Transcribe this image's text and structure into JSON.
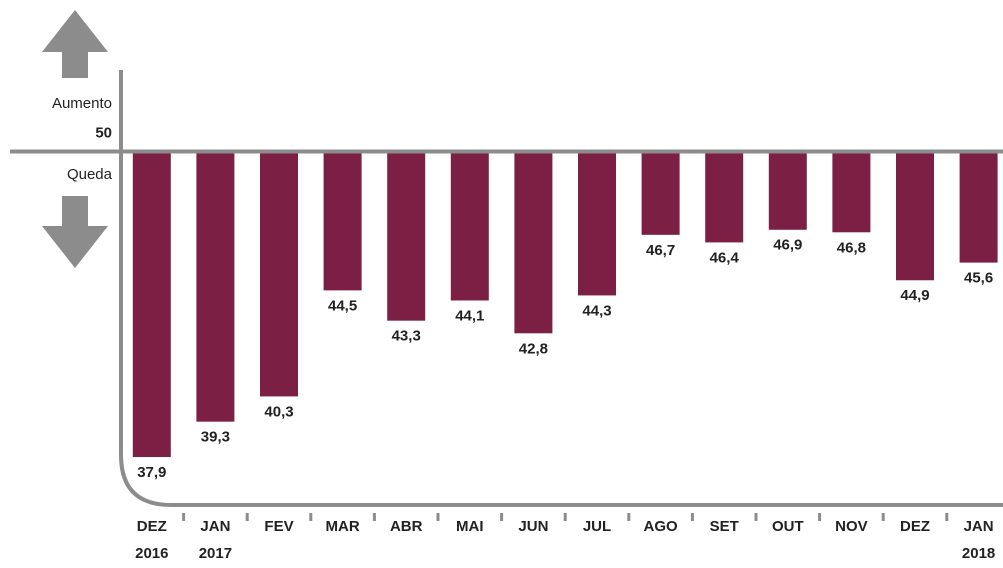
{
  "chart_data": {
    "type": "bar",
    "labels": {
      "up": "Aumento",
      "down": "Queda"
    },
    "categories": [
      [
        "DEZ",
        "2016"
      ],
      [
        "JAN",
        "2017"
      ],
      [
        "FEV"
      ],
      [
        "MAR"
      ],
      [
        "ABR"
      ],
      [
        "MAI"
      ],
      [
        "JUN"
      ],
      [
        "JUL"
      ],
      [
        "AGO"
      ],
      [
        "SET"
      ],
      [
        "OUT"
      ],
      [
        "NOV"
      ],
      [
        "DEZ"
      ],
      [
        "JAN",
        "2018"
      ]
    ],
    "values": [
      37.9,
      39.3,
      40.3,
      44.5,
      43.3,
      44.1,
      42.8,
      44.3,
      46.7,
      46.4,
      46.9,
      46.8,
      44.9,
      45.6
    ],
    "value_labels": [
      "37,9",
      "39,3",
      "40,3",
      "44,5",
      "43,3",
      "44,1",
      "42,8",
      "44,3",
      "46,7",
      "46,4",
      "46,9",
      "46,8",
      "44,9",
      "45,6"
    ],
    "color": "#7b1f45",
    "ylim": [
      36,
      56
    ],
    "yticks": [
      50
    ]
  }
}
